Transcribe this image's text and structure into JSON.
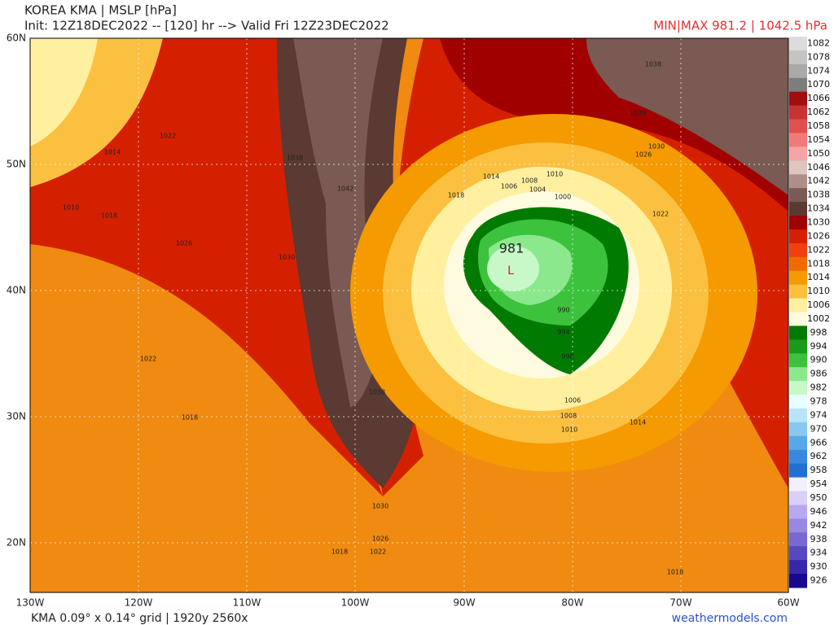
{
  "header": {
    "title": "KOREA KMA | MSLP [hPa]",
    "init": "Init: 12Z18DEC2022 -- [120] hr --> Valid Fri 12Z23DEC2022",
    "minmax": "MIN|MAX 981.2 | 1042.5 hPa"
  },
  "axes": {
    "lat": [
      "60N",
      "50N",
      "40N",
      "30N",
      "20N"
    ],
    "lon": [
      "130W",
      "120W",
      "110W",
      "100W",
      "90W",
      "80W",
      "70W",
      "60W"
    ]
  },
  "colorbar": {
    "levels": [
      1082,
      1078,
      1074,
      1070,
      1066,
      1062,
      1058,
      1054,
      1050,
      1046,
      1042,
      1038,
      1034,
      1030,
      1026,
      1022,
      1018,
      1014,
      1010,
      1006,
      1002,
      998,
      994,
      990,
      986,
      982,
      978,
      974,
      970,
      966,
      962,
      958,
      954,
      950,
      946,
      942,
      938,
      934,
      930,
      926
    ],
    "colors": [
      "#dcdcdc",
      "#c4c4c4",
      "#a9a9a9",
      "#7d7d7d",
      "#a10e0e",
      "#c83232",
      "#e05050",
      "#f07a7a",
      "#f4a5a5",
      "#e0c4c0",
      "#b08e88",
      "#7a5a52",
      "#5a3a32",
      "#a00000",
      "#d42000",
      "#f04010",
      "#f06a00",
      "#f59a00",
      "#fcc040",
      "#fff0a0",
      "#fffbe0",
      "#007a00",
      "#1a9a1a",
      "#3cc23c",
      "#8ce88c",
      "#c8f8c8",
      "#e8ffff",
      "#b8e4f8",
      "#88c8f0",
      "#58a8e8",
      "#3888e0",
      "#2070d0",
      "#f0f0ff",
      "#d8d0f8",
      "#b8a8f0",
      "#9888e0",
      "#7868d0",
      "#5848c0",
      "#3828a8",
      "#180890"
    ]
  },
  "map": {
    "low_value": "981",
    "low_symbol": "L",
    "contour_labels": [
      "1014",
      "1010",
      "1018",
      "1022",
      "1026",
      "1030",
      "1038",
      "1042",
      "1038",
      "1034",
      "1026",
      "1030",
      "1022",
      "1014",
      "1008",
      "1010",
      "1006",
      "1004",
      "1000",
      "1018",
      "990",
      "994",
      "998",
      "1006",
      "1008",
      "1010",
      "1014",
      "1038",
      "1022",
      "1018",
      "1030",
      "1026",
      "1022",
      "1018",
      "1018"
    ]
  },
  "footer": {
    "grid": "KMA 0.09° x 0.14° grid | 1920y 2560x",
    "source": "weathermodels.com"
  }
}
